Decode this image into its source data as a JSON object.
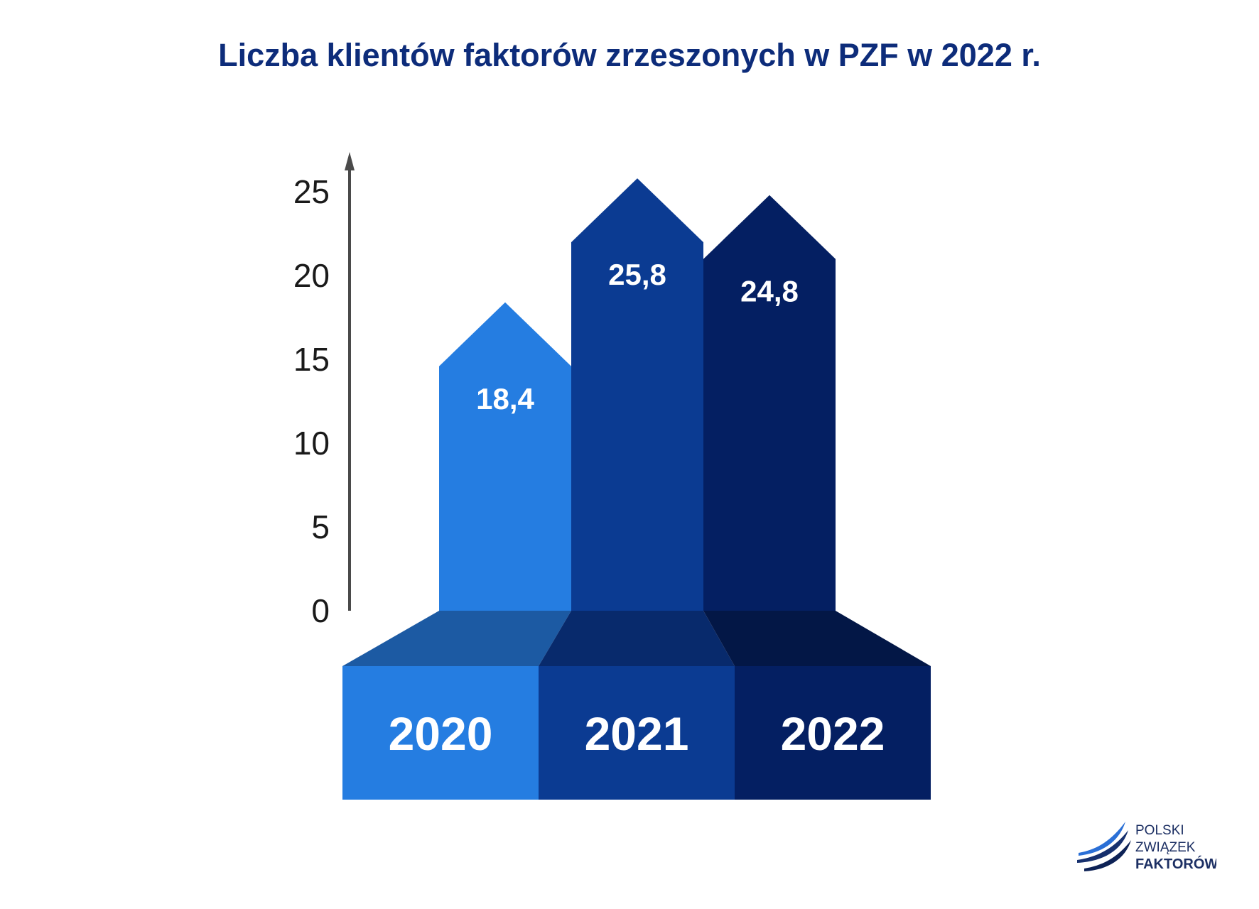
{
  "chart_data": {
    "type": "bar",
    "title": "Liczba klientów faktorów zrzeszonych w PZF w 2022 r.",
    "categories": [
      "2020",
      "2021",
      "2022"
    ],
    "values": [
      18.4,
      25.8,
      24.8
    ],
    "value_labels": [
      "18,4",
      "25,8",
      "24,8"
    ],
    "y_ticks": [
      "0",
      "5",
      "10",
      "15",
      "20",
      "25"
    ],
    "ylim": [
      0,
      25
    ],
    "grid": false,
    "legend": "none",
    "colors": {
      "bars": [
        "#257de1",
        "#0b3b92",
        "#041f62"
      ],
      "bases": [
        "#257de1",
        "#0b3b92",
        "#041f62"
      ],
      "base_tops": [
        "#1c5aa3",
        "#082a6c",
        "#031746"
      ],
      "axis": "#4a4a4a",
      "title": "#0d2c7a"
    }
  },
  "logo": {
    "line1": "POLSKI",
    "line2": "ZWIĄZEK",
    "line3": "FAKTORÓW"
  }
}
